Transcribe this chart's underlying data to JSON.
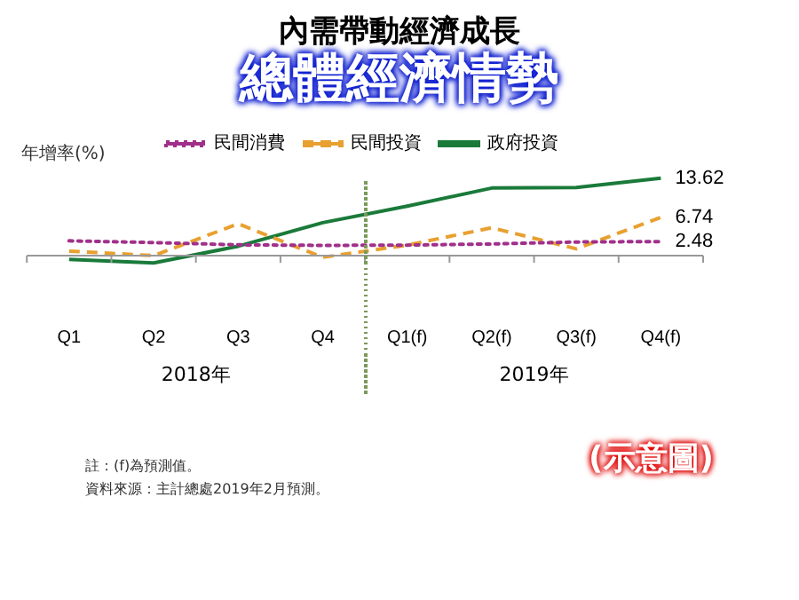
{
  "chart_data": {
    "type": "line",
    "title": "內需帶動經濟成長",
    "subtitle": "總體經濟情勢",
    "ylabel": "年增率(%)",
    "categories": [
      "Q1",
      "Q2",
      "Q3",
      "Q4",
      "Q1(f)",
      "Q2(f)",
      "Q3(f)",
      "Q4(f)"
    ],
    "series": [
      {
        "name": "民間消費",
        "color": "#a0308a",
        "line_style": "dotted",
        "values": [
          2.6,
          2.3,
          1.9,
          1.8,
          1.85,
          2.05,
          2.4,
          2.48
        ],
        "value_labels": [
          null,
          null,
          null,
          null,
          null,
          null,
          null,
          "2.48"
        ]
      },
      {
        "name": "民間投資",
        "color": "#e8a030",
        "line_style": "dashed",
        "values": [
          0.8,
          0,
          5.6,
          -0.3,
          1.85,
          4.9,
          1.2,
          6.74
        ],
        "value_labels": [
          null,
          null,
          null,
          null,
          null,
          null,
          null,
          "6.74"
        ]
      },
      {
        "name": "政府投資",
        "color": "#1a7a3a",
        "line_style": "solid",
        "values": [
          -0.65,
          -1.3,
          1.65,
          5.8,
          8.7,
          11.9,
          12.0,
          13.62
        ],
        "value_labels": [
          null,
          null,
          null,
          null,
          null,
          null,
          null,
          "13.62"
        ]
      }
    ],
    "tick_labels": "x",
    "legend": "top",
    "marker": "none",
    "grid": false,
    "annotations": [
      "2018年",
      "2019年",
      "註：(f)為預測值。",
      "資料來源：主計總處2019年2月預測。",
      "(示意圖)"
    ]
  }
}
